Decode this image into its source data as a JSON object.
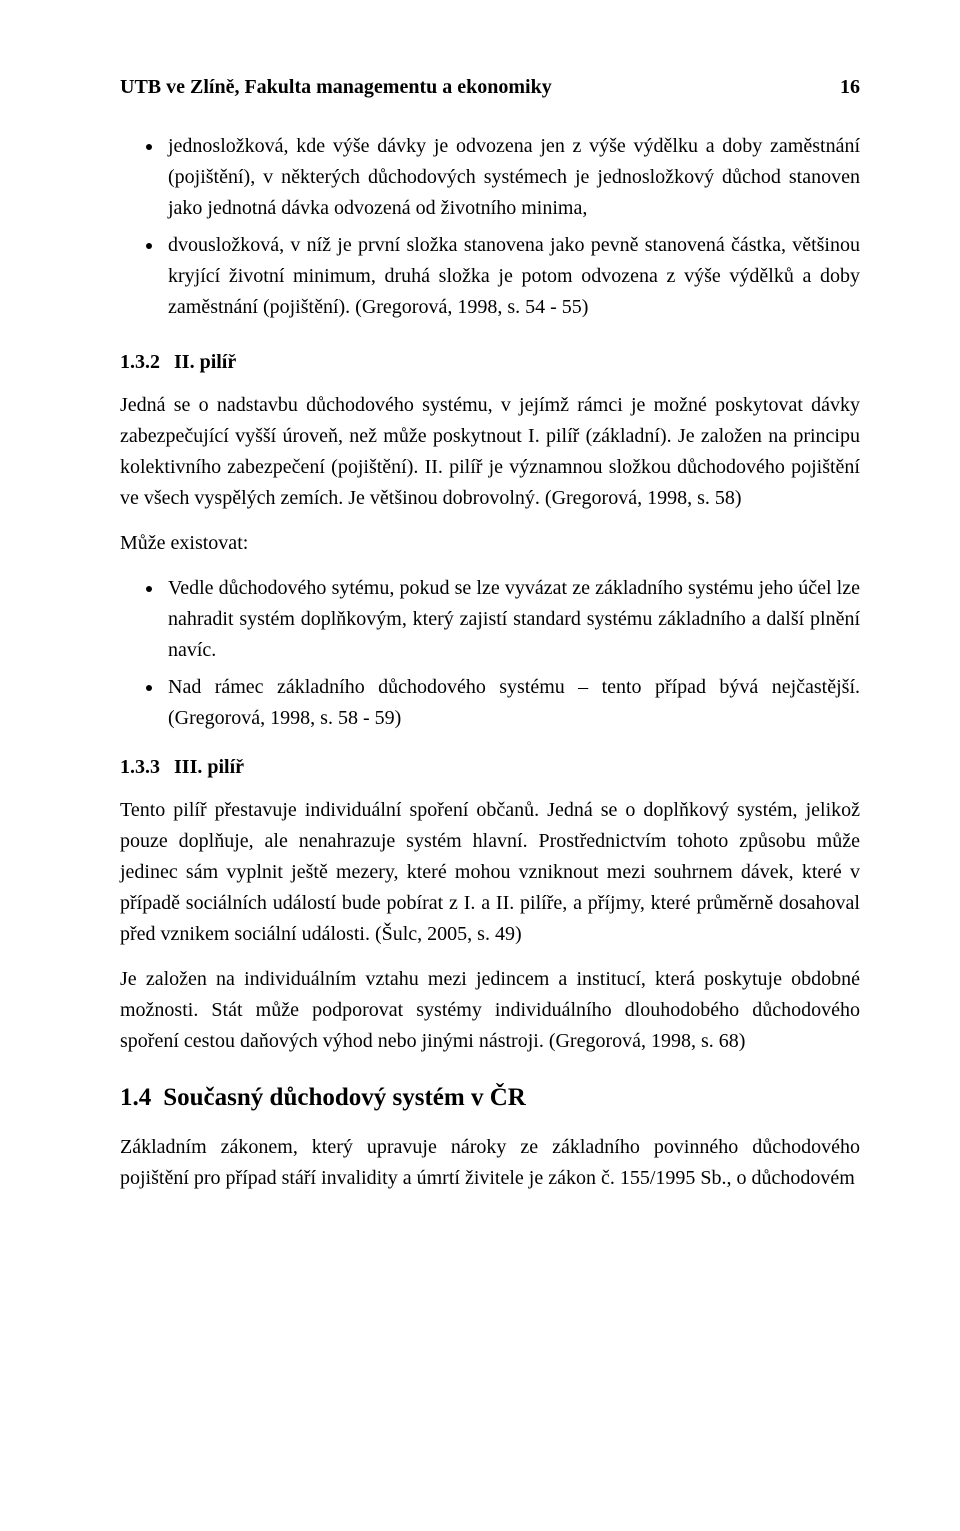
{
  "header": {
    "left": "UTB ve Zlíně, Fakulta managementu a ekonomiky",
    "page": "16"
  },
  "topBullets": [
    "jednosložková, kde výše dávky je odvozena jen z výše výdělku a doby zaměstnání (pojištění), v některých důchodových systémech je jednosložkový důchod stanoven jako jednotná dávka odvozená od životního minima,",
    "dvousložková, v níž je první složka stanovena jako pevně stanovená částka, většinou kryjící životní minimum, druhá složka je potom odvozena z výše výdělků a doby zaměstnání (pojištění). (Gregorová, 1998, s. 54 - 55)"
  ],
  "s132": {
    "num": "1.3.2",
    "title": "II. pilíř",
    "p1": "Jedná se o nadstavbu důchodového systému, v jejímž rámci je možné poskytovat dávky zabezpečující vyšší úroveň, než může poskytnout I. pilíř (základní). Je založen na principu kolektivního zabezpečení (pojištění). II. pilíř je významnou složkou důchodového pojištění ve všech vyspělých zemích. Je většinou dobrovolný. (Gregorová, 1998, s. 58)",
    "lede": "Může existovat:",
    "bullets": [
      "Vedle důchodového sytému, pokud se lze vyvázat ze základního systému jeho účel lze nahradit systém doplňkovým, který zajistí standard systému základního a další plnění navíc.",
      "Nad rámec základního důchodového systému – tento případ bývá nejčastější. (Gregorová, 1998, s. 58 - 59)"
    ]
  },
  "s133": {
    "num": "1.3.3",
    "title": "III. pilíř",
    "p1": "Tento pilíř přestavuje individuální spoření občanů. Jedná se o doplňkový systém, jelikož pouze doplňuje, ale nenahrazuje systém hlavní. Prostřednictvím tohoto způsobu může jedinec sám vyplnit ještě mezery, které mohou vzniknout mezi souhrnem dávek, které v případě sociálních událostí bude pobírat z I. a II. pilíře, a příjmy, které průměrně dosahoval před vznikem sociální události. (Šulc, 2005, s. 49)",
    "p2": "Je založen na individuálním vztahu mezi jedincem a institucí, která poskytuje obdobné možnosti. Stát může podporovat systémy individuálního dlouhodobého důchodového spoření cestou daňových výhod nebo jinými nástroji. (Gregorová, 1998, s. 68)"
  },
  "s14": {
    "num": "1.4",
    "title": "Současný důchodový systém v ČR",
    "p1": "Základním zákonem, který upravuje nároky ze základního povinného důchodového pojištění pro případ stáří invalidity a úmrtí živitele je zákon č. 155/1995 Sb., o důchodovém"
  }
}
